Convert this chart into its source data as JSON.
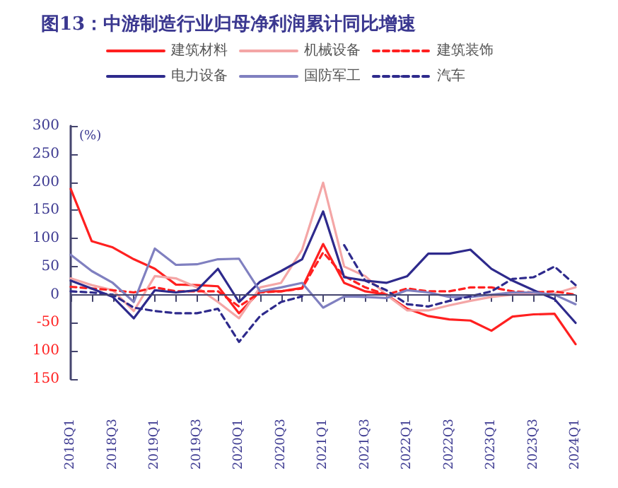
{
  "chart_data": {
    "type": "line",
    "title": "图13：中游制造行业归母净利润累计同比增速",
    "ylabel": "(%)",
    "categories": [
      "2018Q1",
      null,
      "2018Q3",
      null,
      "2019Q1",
      null,
      "2019Q3",
      null,
      "2020Q1",
      null,
      "2020Q3",
      null,
      "2021Q1",
      null,
      "2021Q3",
      null,
      "2022Q1",
      null,
      "2022Q3",
      null,
      "2023Q1",
      null,
      "2023Q3",
      null,
      "2024Q1"
    ],
    "ylim": [
      -150,
      300
    ],
    "yticks": [
      300,
      250,
      200,
      150,
      100,
      50,
      0,
      -50,
      {
        "value": -100,
        "label": "100"
      },
      {
        "value": -150,
        "label": "150"
      }
    ],
    "ref_lines": [
      {
        "axis": "y",
        "value": 0,
        "color": "#45456e",
        "line_style": "solid"
      }
    ],
    "grid": false,
    "legend": "top",
    "marker": "none",
    "series": [
      {
        "name": "建筑材料",
        "color": "#ff2020",
        "line_style": "solid",
        "values": [
          188,
          95,
          84,
          63,
          46,
          18,
          17,
          15,
          -33,
          6,
          6,
          12,
          90,
          21,
          6,
          0,
          -25,
          -38,
          -44,
          -46,
          -64,
          -39,
          -35,
          -34,
          -88
        ]
      },
      {
        "name": "机械设备",
        "color": "#f4a6a6",
        "line_style": "solid",
        "values": [
          29,
          17,
          8,
          -29,
          33,
          29,
          13,
          -13,
          -42,
          13,
          21,
          80,
          199,
          50,
          33,
          0,
          -28,
          -28,
          -19,
          -11,
          -4,
          0,
          0,
          2,
          13
        ]
      },
      {
        "name": "建筑装饰",
        "color": "#ff2020",
        "line_style": "dashed",
        "values": [
          14,
          11,
          8,
          4,
          13,
          6,
          6,
          6,
          -21,
          4,
          6,
          11,
          75,
          33,
          13,
          0,
          11,
          6,
          6,
          13,
          13,
          6,
          4,
          6,
          0
        ]
      },
      {
        "name": "电力设备",
        "color": "#2e2a8c",
        "line_style": "solid",
        "values": [
          25,
          11,
          -4,
          -42,
          8,
          4,
          8,
          46,
          -13,
          23,
          42,
          63,
          148,
          31,
          25,
          21,
          33,
          73,
          73,
          80,
          46,
          25,
          8,
          -8,
          -50
        ]
      },
      {
        "name": "国防军工",
        "color": "#8080c0",
        "line_style": "solid",
        "values": [
          71,
          42,
          21,
          -13,
          82,
          53,
          54,
          63,
          64,
          6,
          13,
          21,
          -23,
          -3,
          -4,
          -6,
          8,
          4,
          -4,
          -4,
          0,
          4,
          4,
          0,
          -17
        ]
      },
      {
        "name": "汽车",
        "color": "#2e2a8c",
        "line_style": "dashed",
        "values": [
          6,
          4,
          0,
          -23,
          -29,
          -33,
          -33,
          -25,
          -84,
          -38,
          -13,
          -3,
          null,
          88,
          25,
          8,
          -17,
          -21,
          -11,
          -3,
          6,
          28,
          31,
          50,
          17
        ]
      }
    ]
  }
}
